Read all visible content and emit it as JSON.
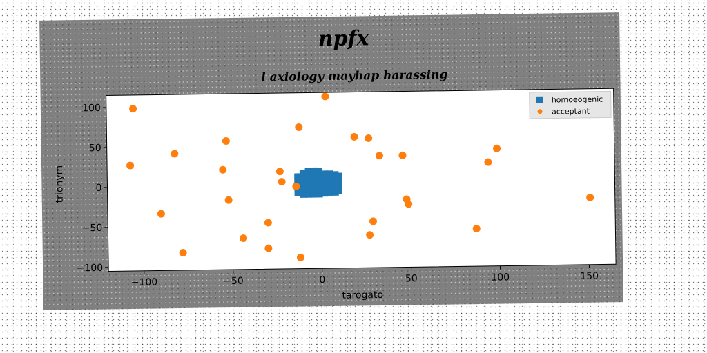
{
  "chart_data": {
    "type": "scatter",
    "suptitle": "npfx",
    "title": "l axiology mayhap harassing",
    "xlabel": "tarogato",
    "ylabel": "trionym",
    "xlim": [
      -120,
      165
    ],
    "ylim": [
      -105,
      115
    ],
    "xticks": [
      -100,
      -50,
      0,
      50,
      100,
      150
    ],
    "yticks": [
      -100,
      -50,
      0,
      50,
      100
    ],
    "grid": false,
    "legend_position": "top-right",
    "colors": {
      "homoeogenic": "#1f77b4",
      "acceptant": "#ff7f0e",
      "figure_bg": "#808080",
      "plot_bg": "#ffffff"
    },
    "series": [
      {
        "name": "homoeogenic",
        "marker": "square",
        "points": [
          [
            -13,
            -10
          ],
          [
            -13,
            -5
          ],
          [
            -13,
            0
          ],
          [
            -13,
            5
          ],
          [
            -13,
            10
          ],
          [
            -10,
            -12
          ],
          [
            -10,
            -7
          ],
          [
            -10,
            -2
          ],
          [
            -10,
            3
          ],
          [
            -10,
            8
          ],
          [
            -10,
            14
          ],
          [
            -7,
            -12
          ],
          [
            -7,
            -6
          ],
          [
            -7,
            0
          ],
          [
            -7,
            6
          ],
          [
            -7,
            12
          ],
          [
            -7,
            17
          ],
          [
            -4,
            -12
          ],
          [
            -4,
            -6
          ],
          [
            -4,
            0
          ],
          [
            -4,
            6
          ],
          [
            -4,
            12
          ],
          [
            -4,
            17
          ],
          [
            -1,
            -12
          ],
          [
            -1,
            -6
          ],
          [
            -1,
            0
          ],
          [
            -1,
            6
          ],
          [
            -1,
            12
          ],
          [
            -1,
            16
          ],
          [
            2,
            -11
          ],
          [
            2,
            -5
          ],
          [
            2,
            1
          ],
          [
            2,
            7
          ],
          [
            2,
            13
          ],
          [
            5,
            -10
          ],
          [
            5,
            -4
          ],
          [
            5,
            2
          ],
          [
            5,
            8
          ],
          [
            5,
            13
          ],
          [
            8,
            -10
          ],
          [
            8,
            -4
          ],
          [
            8,
            2
          ],
          [
            8,
            8
          ],
          [
            8,
            12
          ],
          [
            10,
            -8
          ],
          [
            10,
            -2
          ],
          [
            10,
            4
          ],
          [
            10,
            10
          ]
        ]
      },
      {
        "name": "acceptant",
        "marker": "circle",
        "points": [
          [
            -105,
            98
          ],
          [
            -107,
            27
          ],
          [
            -82,
            41
          ],
          [
            -90,
            -34
          ],
          [
            -78,
            -83
          ],
          [
            -53,
            56
          ],
          [
            -55,
            20
          ],
          [
            -52,
            -18
          ],
          [
            -44,
            -66
          ],
          [
            -30,
            -47
          ],
          [
            -30,
            -79
          ],
          [
            -23,
            17
          ],
          [
            -22,
            4
          ],
          [
            -14,
            -2
          ],
          [
            -12,
            -91
          ],
          [
            -12,
            72
          ],
          [
            3,
            110
          ],
          [
            19,
            59
          ],
          [
            27,
            57
          ],
          [
            33,
            35
          ],
          [
            46,
            35
          ],
          [
            48,
            -20
          ],
          [
            49,
            -26
          ],
          [
            29,
            -47
          ],
          [
            27,
            -64
          ],
          [
            87,
            -58
          ],
          [
            94,
            25
          ],
          [
            99,
            42
          ],
          [
            151,
            -21
          ]
        ]
      }
    ]
  }
}
